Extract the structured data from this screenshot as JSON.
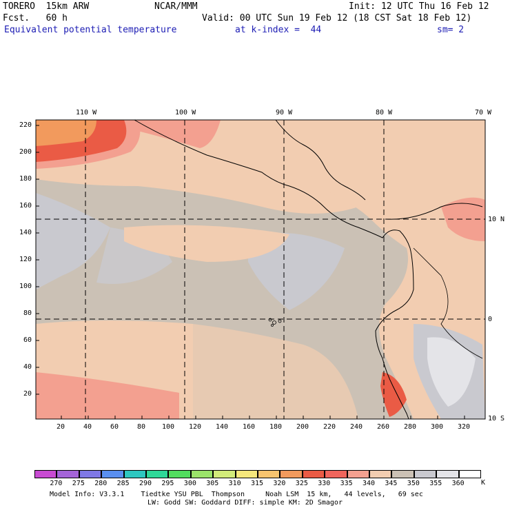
{
  "header": {
    "model": "TORERO  15km ARW",
    "center": "NCAR/MMM",
    "init": "Init: 12 UTC Thu 16 Feb 12",
    "fcst": "Fcst.   60 h",
    "valid": "Valid: 00 UTC Sun 19 Feb 12 (18 CST Sat 18 Feb 12)",
    "field": "Equivalent potential temperature",
    "level": "at k-index =  44",
    "smooth": "sm= 2"
  },
  "axes": {
    "lon_labels": [
      "110 W",
      "100 W",
      "90 W",
      "80 W",
      "70 W"
    ],
    "lat_labels": [
      "10 N",
      "0",
      "10 S"
    ],
    "x_ticks": [
      "20",
      "40",
      "60",
      "80",
      "100",
      "120",
      "140",
      "160",
      "180",
      "200",
      "220",
      "240",
      "260",
      "280",
      "300",
      "320"
    ],
    "y_ticks": [
      "220",
      "200",
      "180",
      "160",
      "140",
      "120",
      "100",
      "80",
      "60",
      "40",
      "20"
    ]
  },
  "colorbar": {
    "unit": "K",
    "labels": [
      "270",
      "275",
      "280",
      "285",
      "290",
      "295",
      "300",
      "305",
      "310",
      "315",
      "320",
      "325",
      "330",
      "335",
      "340",
      "345",
      "350",
      "355",
      "360"
    ],
    "colors": [
      "#c84bd2",
      "#a464d8",
      "#7f78e6",
      "#5a8ff0",
      "#2ec7c0",
      "#2fd898",
      "#52dd5f",
      "#9be36a",
      "#d2eb7a",
      "#f5e77c",
      "#f7c46f",
      "#f29a5d",
      "#ea5b45",
      "#f0655c",
      "#f3a090",
      "#f2cdb1",
      "#cbc1b5",
      "#c9c9cf",
      "#e4e4e8",
      "#ffffff"
    ]
  },
  "map_colors": {
    "ocean_base": "#cbc1b5",
    "warm_band": "#f2cdb1",
    "hot": "#f0655c",
    "very_hot": "#f3a090",
    "gray": "#c9c9cf",
    "light_gray": "#e4e4e8",
    "orange": "#f29a5d"
  },
  "footer": {
    "line1": "Model Info: V3.3.1    Tiedtke YSU PBL  Thompson     Noah LSM  15 km,   44 levels,   69 sec",
    "line2": "LW: Godd SW: Goddard DIFF: simple KM: 2D Smagor"
  }
}
